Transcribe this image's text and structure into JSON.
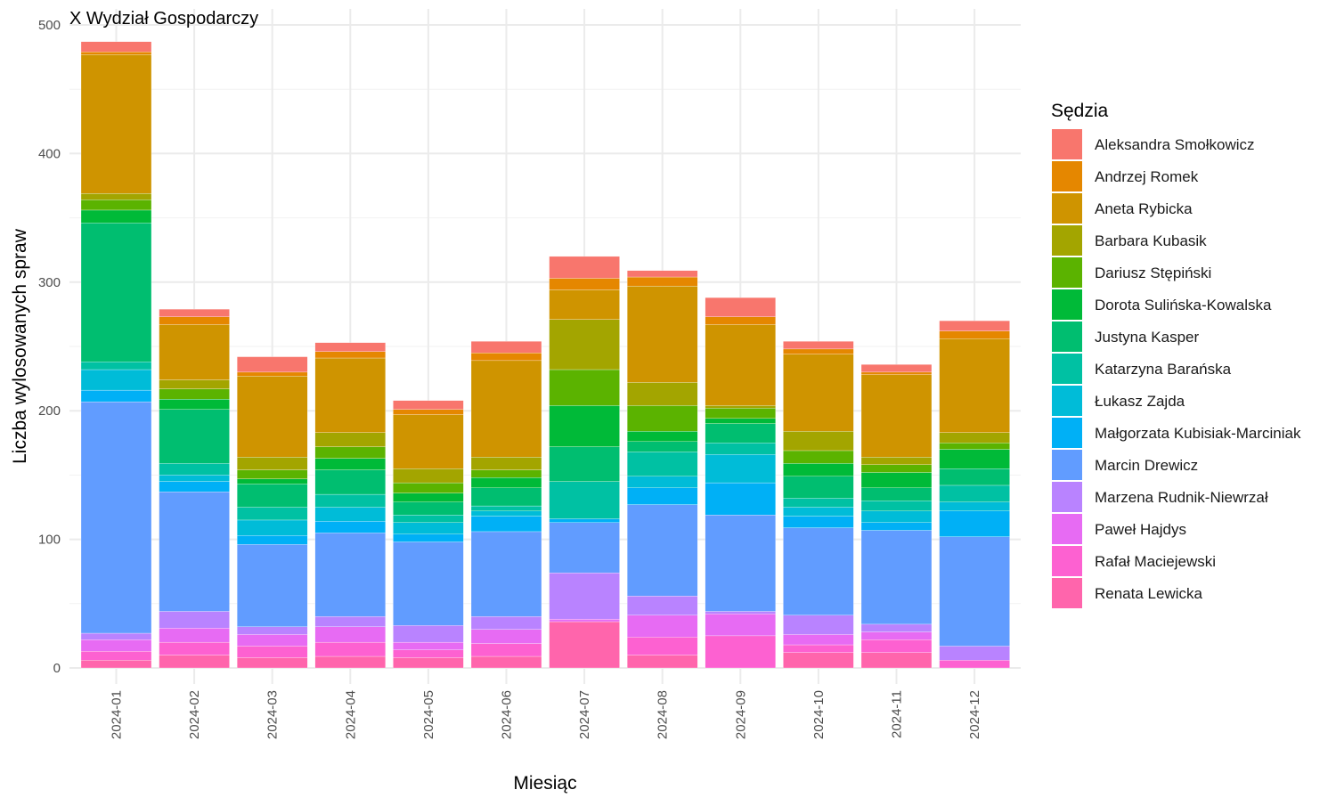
{
  "chart_data": {
    "type": "bar",
    "stacked": true,
    "title": "X Wydział Gospodarczy",
    "xlabel": "Miesiąc",
    "ylabel": "Liczba wylosowanych spraw",
    "ylim": [
      0,
      500
    ],
    "yticks": [
      0,
      100,
      200,
      300,
      400,
      500
    ],
    "grid": true,
    "legend_title": "Sędzia",
    "legend_position": "right",
    "categories": [
      "2024-01",
      "2024-02",
      "2024-03",
      "2024-04",
      "2024-05",
      "2024-06",
      "2024-07",
      "2024-08",
      "2024-09",
      "2024-10",
      "2024-11",
      "2024-12"
    ],
    "series": [
      {
        "name": "Renata Lewicka",
        "color": "#FF65AC",
        "values": [
          6,
          10,
          8,
          9,
          8,
          9,
          36,
          10,
          0,
          12,
          12,
          0
        ]
      },
      {
        "name": "Rafał Maciejewski",
        "color": "#FD61D1",
        "values": [
          7,
          10,
          9,
          11,
          6,
          10,
          0,
          14,
          25,
          6,
          10,
          6
        ]
      },
      {
        "name": "Paweł Hajdys",
        "color": "#E76BF3",
        "values": [
          9,
          11,
          9,
          12,
          6,
          11,
          2,
          17,
          17,
          8,
          6,
          0
        ]
      },
      {
        "name": "Marzena Rudnik-Niewrzał",
        "color": "#B983FF",
        "values": [
          5,
          13,
          6,
          8,
          13,
          10,
          36,
          15,
          2,
          15,
          6,
          11
        ]
      },
      {
        "name": "Marcin Drewicz",
        "color": "#619CFF",
        "values": [
          180,
          93,
          64,
          65,
          65,
          66,
          39,
          71,
          75,
          68,
          73,
          85
        ]
      },
      {
        "name": "Małgorzata Kubisiak-Marciniak",
        "color": "#00B0F6",
        "values": [
          9,
          8,
          7,
          9,
          6,
          12,
          3,
          13,
          25,
          9,
          6,
          20
        ]
      },
      {
        "name": "Łukasz Zajda",
        "color": "#00BCD8",
        "values": [
          16,
          5,
          12,
          11,
          9,
          4,
          0,
          9,
          22,
          7,
          9,
          7
        ]
      },
      {
        "name": "Katarzyna Barańska",
        "color": "#00C1A3",
        "values": [
          6,
          9,
          10,
          10,
          6,
          4,
          29,
          19,
          9,
          7,
          8,
          13
        ]
      },
      {
        "name": "Justyna Kasper",
        "color": "#00BE70",
        "values": [
          108,
          42,
          18,
          19,
          10,
          14,
          27,
          8,
          15,
          17,
          10,
          13
        ]
      },
      {
        "name": "Dorota Sulińska-Kowalska",
        "color": "#00BA38",
        "values": [
          10,
          8,
          4,
          9,
          7,
          8,
          32,
          8,
          4,
          10,
          12,
          15
        ]
      },
      {
        "name": "Dariusz Stępiński",
        "color": "#5BB300",
        "values": [
          8,
          8,
          7,
          9,
          8,
          6,
          28,
          20,
          8,
          10,
          6,
          5
        ]
      },
      {
        "name": "Barbara Kubasik",
        "color": "#A3A500",
        "values": [
          5,
          7,
          10,
          11,
          11,
          10,
          39,
          18,
          2,
          15,
          6,
          8
        ]
      },
      {
        "name": "Aneta Rybicka",
        "color": "#CF9400",
        "values": [
          108,
          43,
          63,
          58,
          42,
          75,
          23,
          75,
          63,
          60,
          64,
          73
        ]
      },
      {
        "name": "Andrzej Romek",
        "color": "#E58700",
        "values": [
          2,
          6,
          3,
          5,
          4,
          6,
          9,
          7,
          6,
          4,
          2,
          6
        ]
      },
      {
        "name": "Aleksandra Smołkowicz",
        "color": "#F8766D",
        "values": [
          8,
          6,
          12,
          7,
          7,
          9,
          17,
          5,
          15,
          6,
          6,
          8
        ]
      }
    ],
    "legend_order": [
      "Aleksandra Smołkowicz",
      "Andrzej Romek",
      "Aneta Rybicka",
      "Barbara Kubasik",
      "Dariusz Stępiński",
      "Dorota Sulińska-Kowalska",
      "Justyna Kasper",
      "Katarzyna Barańska",
      "Łukasz Zajda",
      "Małgorzata Kubisiak-Marciniak",
      "Marcin Drewicz",
      "Marzena Rudnik-Niewrzał",
      "Paweł Hajdys",
      "Rafał Maciejewski",
      "Renata Lewicka"
    ]
  }
}
